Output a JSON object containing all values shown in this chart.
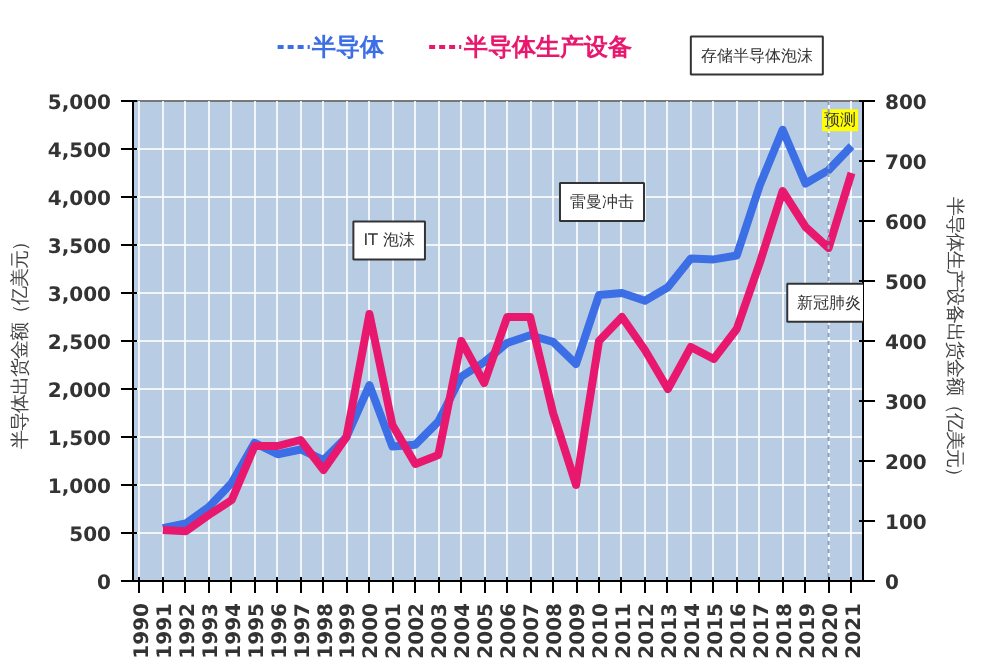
{
  "chart_data": {
    "type": "line",
    "x": [
      1991,
      1992,
      1993,
      1994,
      1995,
      1996,
      1997,
      1998,
      1999,
      2000,
      2001,
      2002,
      2003,
      2004,
      2005,
      2006,
      2007,
      2008,
      2009,
      2010,
      2011,
      2012,
      2013,
      2014,
      2015,
      2016,
      2017,
      2018,
      2019,
      2020,
      2021
    ],
    "series": [
      {
        "name": "半导体",
        "color": "#3c6ee6",
        "values": [
          550,
          600,
          770,
          1020,
          1440,
          1320,
          1370,
          1260,
          1500,
          2040,
          1400,
          1420,
          1660,
          2130,
          2280,
          2480,
          2560,
          2490,
          2260,
          2980,
          3000,
          2920,
          3060,
          3360,
          3350,
          3390,
          4120,
          4700,
          4140,
          4280,
          4530
        ]
      },
      {
        "name": "半导体生产设备",
        "color": "#e8186e",
        "axis": "y2",
        "values": [
          85,
          83,
          110,
          135,
          225,
          225,
          235,
          185,
          240,
          445,
          260,
          195,
          210,
          400,
          330,
          440,
          440,
          280,
          160,
          400,
          440,
          385,
          320,
          390,
          370,
          420,
          530,
          650,
          590,
          555,
          680
        ]
      }
    ],
    "ylabel": "半导体出货金额（亿美元）",
    "y2label": "半导体生产设备出货金额（亿美元）",
    "xlim": [
      1989.7,
      2021.5
    ],
    "xticks": [
      1990,
      1991,
      1992,
      1993,
      1994,
      1995,
      1996,
      1997,
      1998,
      1999,
      2000,
      2001,
      2002,
      2003,
      2004,
      2005,
      2006,
      2007,
      2008,
      2009,
      2010,
      2011,
      2012,
      2013,
      2014,
      2015,
      2016,
      2017,
      2018,
      2019,
      2020,
      {
        "value": 2021,
        "label": "2021"
      }
    ],
    "ylim": [
      0,
      5000
    ],
    "yticks": [
      {
        "value": 0,
        "label": "0"
      },
      {
        "value": 500,
        "label": "500"
      },
      {
        "value": 1000,
        "label": "1,000"
      },
      {
        "value": 1500,
        "label": "1,500"
      },
      {
        "value": 2000,
        "label": "2,000"
      },
      {
        "value": 2500,
        "label": "2,500"
      },
      {
        "value": 3000,
        "label": "3,000"
      },
      {
        "value": 3500,
        "label": "3,500"
      },
      {
        "value": 4000,
        "label": "4,000"
      },
      {
        "value": 4500,
        "label": "4,500"
      },
      {
        "value": 5000,
        "label": "5,000"
      }
    ],
    "y2lim": [
      0,
      800
    ],
    "y2ticks": [
      0,
      100,
      200,
      300,
      400,
      500,
      600,
      700,
      800
    ],
    "ref_lines": [
      {
        "axis": "x",
        "value": 2020,
        "label": "预测",
        "line_style": "dotted",
        "color": "#8a9cc0"
      }
    ],
    "annotations": [
      "IT 泡沫",
      "雷曼冲击",
      "存储半导体泡沫",
      "新冠肺炎"
    ],
    "grid": true,
    "legend": "top",
    "marker": "none",
    "line_style": "solid"
  }
}
